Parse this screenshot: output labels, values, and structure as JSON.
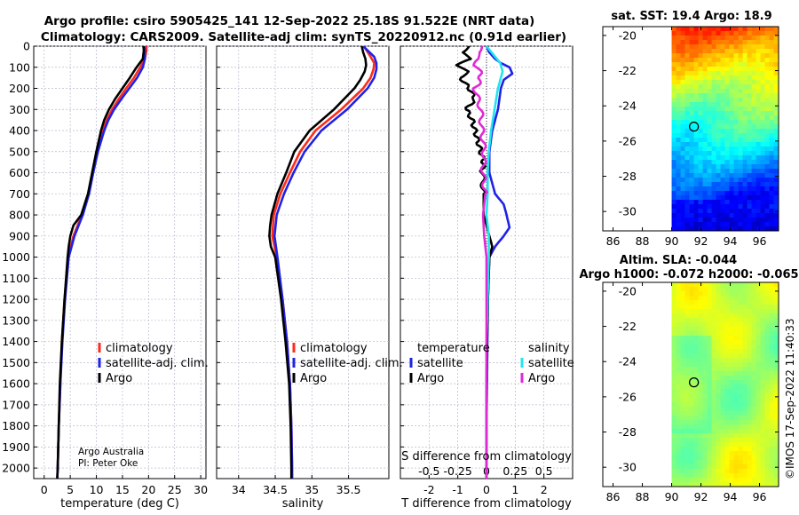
{
  "title_line1": "Argo profile: csiro 5905425_141 12-Sep-2022 25.18S 91.522E (NRT data)",
  "title_line2": "Climatology: CARS2009. Satellite-adj clim: synTS_20220912.nc (0.91d earlier)",
  "credit_line1": "Argo Australia",
  "credit_line2": "PI: Peter Oke",
  "timestamp": "©IMOS 17-Sep-2022 11:40:33",
  "colors": {
    "climatology": "#ff2a1a",
    "satellite_adj_clim": "#1f22e6",
    "argo": "#000000",
    "salinity_satellite": "#22e4ee",
    "salinity_argo": "#e02ad6"
  },
  "chart_data": [
    {
      "type": "line",
      "name": "temperature-profile",
      "xlabel": "temperature (deg C)",
      "ylabel": "depth",
      "xlim": [
        -2,
        31
      ],
      "ylim": [
        2050,
        0
      ],
      "x_ticks": [
        0,
        5,
        10,
        15,
        20,
        25,
        30
      ],
      "y_ticks": [
        0,
        100,
        200,
        300,
        400,
        500,
        600,
        700,
        800,
        900,
        1000,
        1100,
        1200,
        1300,
        1400,
        1500,
        1600,
        1700,
        1800,
        1900,
        2000
      ],
      "legend": [
        "climatology",
        "satellite-adj. clim.",
        "Argo"
      ],
      "legend_position": "lower-right",
      "series": [
        {
          "name": "climatology",
          "color_key": "climatology",
          "depth": [
            0,
            20,
            60,
            100,
            150,
            200,
            250,
            300,
            350,
            400,
            500,
            600,
            700,
            800,
            900,
            1000,
            1200,
            1400,
            1600,
            1800,
            2000,
            2050
          ],
          "values": [
            19.6,
            19.6,
            19.3,
            18.4,
            17.2,
            15.7,
            14.3,
            13.0,
            12.0,
            11.3,
            10.2,
            9.3,
            8.5,
            7.2,
            5.6,
            4.6,
            3.9,
            3.4,
            3.1,
            2.8,
            2.6,
            2.5
          ]
        },
        {
          "name": "satellite-adj. clim.",
          "color_key": "satellite_adj_clim",
          "depth": [
            0,
            20,
            60,
            100,
            150,
            200,
            250,
            300,
            350,
            400,
            500,
            600,
            700,
            800,
            900,
            1000,
            1200,
            1400,
            1600,
            1800,
            2000,
            2050
          ],
          "values": [
            19.2,
            19.3,
            19.3,
            18.9,
            17.8,
            16.3,
            14.8,
            13.4,
            12.3,
            11.5,
            10.3,
            9.4,
            8.6,
            7.4,
            5.8,
            4.7,
            4.0,
            3.5,
            3.1,
            2.8,
            2.6,
            2.5
          ]
        },
        {
          "name": "Argo",
          "color_key": "argo",
          "depth": [
            0,
            20,
            60,
            100,
            150,
            200,
            250,
            300,
            350,
            400,
            500,
            600,
            700,
            800,
            850,
            900,
            950,
            1000,
            1200,
            1400,
            1600,
            1800,
            2000,
            2050
          ],
          "values": [
            19.0,
            19.1,
            18.9,
            17.7,
            16.4,
            15.0,
            13.6,
            12.4,
            11.5,
            10.9,
            10.0,
            9.2,
            8.4,
            7.1,
            5.6,
            5.0,
            4.7,
            4.5,
            3.9,
            3.4,
            3.0,
            2.8,
            2.6,
            2.5
          ]
        }
      ]
    },
    {
      "type": "line",
      "name": "salinity-profile",
      "xlabel": "salinity",
      "xlim": [
        33.7,
        36.05
      ],
      "ylim": [
        2050,
        0
      ],
      "x_ticks": [
        34,
        34.5,
        35,
        35.5
      ],
      "legend": [
        "climatology",
        "satellite-adj. clim.",
        "Argo"
      ],
      "legend_position": "lower-right",
      "series": [
        {
          "name": "climatology",
          "color_key": "climatology",
          "depth": [
            0,
            50,
            80,
            110,
            150,
            200,
            300,
            400,
            500,
            600,
            700,
            800,
            900,
            1000,
            1200,
            1400,
            1600,
            1800,
            2000,
            2050
          ],
          "values": [
            35.71,
            35.8,
            35.85,
            35.84,
            35.8,
            35.7,
            35.4,
            35.05,
            34.84,
            34.7,
            34.57,
            34.48,
            34.46,
            34.52,
            34.6,
            34.66,
            34.7,
            34.72,
            34.73,
            34.73
          ]
        },
        {
          "name": "satellite-adj. clim.",
          "color_key": "satellite_adj_clim",
          "depth": [
            0,
            50,
            80,
            110,
            150,
            200,
            300,
            400,
            500,
            600,
            700,
            800,
            900,
            1000,
            1200,
            1400,
            1600,
            1800,
            2000,
            2050
          ],
          "values": [
            35.7,
            35.85,
            35.88,
            35.88,
            35.85,
            35.76,
            35.48,
            35.13,
            34.9,
            34.75,
            34.62,
            34.52,
            34.49,
            34.53,
            34.6,
            34.66,
            34.7,
            34.72,
            34.73,
            34.73
          ]
        },
        {
          "name": "Argo",
          "color_key": "argo",
          "depth": [
            0,
            30,
            60,
            90,
            120,
            160,
            200,
            300,
            400,
            500,
            600,
            700,
            800,
            850,
            900,
            950,
            1000,
            1200,
            1400,
            1600,
            1800,
            2000,
            2050
          ],
          "values": [
            35.68,
            35.7,
            35.73,
            35.74,
            35.72,
            35.66,
            35.58,
            35.3,
            34.97,
            34.76,
            34.65,
            34.53,
            34.45,
            34.43,
            34.42,
            34.44,
            34.5,
            34.58,
            34.64,
            34.69,
            34.71,
            34.72,
            34.72
          ]
        }
      ]
    },
    {
      "type": "line",
      "name": "difference-profile",
      "xlabel": "T difference from climatology",
      "x2label": "S difference from climatology",
      "xlim": [
        -3.0,
        3.0
      ],
      "x2lim": [
        -0.75,
        0.75
      ],
      "ylim": [
        2050,
        0
      ],
      "x_ticks": [
        -2,
        -1,
        0,
        1,
        2
      ],
      "x2_ticks": [
        -0.5,
        -0.25,
        0,
        0.25,
        0.5
      ],
      "x2_tick_labels": [
        "-0.5",
        "-0.25",
        "0",
        "0.25",
        "0.5"
      ],
      "legend_temperature_title": "temperature",
      "legend_salinity_title": "salinity",
      "legend_temperature_items": [
        "satellite",
        "Argo"
      ],
      "legend_salinity_items": [
        "satellite",
        "Argo"
      ],
      "series": [
        {
          "name": "temperature satellite",
          "axis": "T",
          "color_key": "satellite_adj_clim",
          "depth": [
            0,
            30,
            60,
            80,
            100,
            130,
            160,
            200,
            300,
            400,
            500,
            600,
            700,
            750,
            800,
            860,
            900,
            950,
            1000,
            1200,
            1400,
            1600,
            1800,
            2000,
            2050
          ],
          "values": [
            0.0,
            0.1,
            0.3,
            0.5,
            0.8,
            0.9,
            0.6,
            0.5,
            0.4,
            0.2,
            0.1,
            0.1,
            0.3,
            0.6,
            0.7,
            0.8,
            0.6,
            0.3,
            0.1,
            0.05,
            0.03,
            0.02,
            0.0,
            0.0,
            0.0
          ]
        },
        {
          "name": "temperature Argo",
          "axis": "T",
          "color_key": "argo",
          "depth": [
            0,
            30,
            60,
            90,
            120,
            150,
            200,
            250,
            300,
            350,
            400,
            450,
            500,
            550,
            600,
            700,
            800,
            900,
            950,
            1000,
            1200,
            1400,
            1600,
            1800,
            2000,
            2050
          ],
          "values": [
            -0.6,
            -0.9,
            -0.5,
            -1.0,
            -0.7,
            -0.9,
            -0.6,
            -0.4,
            -0.7,
            -0.5,
            -0.4,
            -0.3,
            -0.2,
            -0.1,
            -0.15,
            -0.1,
            -0.1,
            0.1,
            0.2,
            0.1,
            0.05,
            0.02,
            0.0,
            0.0,
            0.0,
            0.0
          ]
        },
        {
          "name": "salinity satellite",
          "axis": "S",
          "color_key": "salinity_satellite",
          "depth": [
            0,
            40,
            80,
            120,
            160,
            200,
            300,
            400,
            500,
            600,
            700,
            800,
            900,
            1000,
            1200,
            1400,
            1600,
            1800,
            2000,
            2050
          ],
          "values": [
            0.0,
            0.06,
            0.12,
            0.14,
            0.12,
            0.1,
            0.07,
            0.04,
            0.02,
            0.01,
            0.01,
            0.0,
            0.02,
            0.02,
            0.01,
            0.0,
            0.0,
            0.0,
            0.0,
            0.0
          ]
        },
        {
          "name": "salinity Argo",
          "axis": "S",
          "color_key": "salinity_argo",
          "depth": [
            0,
            30,
            60,
            90,
            120,
            160,
            200,
            300,
            400,
            500,
            600,
            700,
            800,
            900,
            1000,
            1200,
            1400,
            1600,
            1800,
            2000,
            2050
          ],
          "values": [
            -0.04,
            -0.08,
            -0.06,
            -0.1,
            -0.06,
            -0.05,
            -0.1,
            -0.05,
            -0.04,
            -0.02,
            -0.03,
            -0.01,
            -0.03,
            -0.02,
            0.0,
            0.0,
            0.0,
            0.0,
            0.0,
            0.0,
            0.0
          ]
        }
      ]
    },
    {
      "type": "heatmap",
      "name": "sst-map",
      "title": "sat. SST: 19.4 Argo: 18.9",
      "xlim": [
        85.3,
        97.3
      ],
      "ylim": [
        -31.1,
        -19.5
      ],
      "x_ticks": [
        86,
        88,
        90,
        92,
        94,
        96
      ],
      "y_ticks": [
        -20,
        -22,
        -24,
        -26,
        -28,
        -30
      ],
      "data_xlim": [
        90,
        97.3
      ],
      "colormap": "jet",
      "float_marker": {
        "lon": 91.52,
        "lat": -25.18
      }
    },
    {
      "type": "heatmap",
      "name": "sla-map",
      "title_line1": "Altim. SLA: -0.044",
      "title_line2": "Argo h1000: -0.072 h2000: -0.065",
      "xlim": [
        85.3,
        97.3
      ],
      "ylim": [
        -31.1,
        -19.5
      ],
      "x_ticks": [
        86,
        88,
        90,
        92,
        94,
        96
      ],
      "y_ticks": [
        -20,
        -22,
        -24,
        -26,
        -28,
        -30
      ],
      "data_xlim": [
        90,
        97.3
      ],
      "colormap": "jet",
      "float_marker": {
        "lon": 91.52,
        "lat": -25.18
      }
    }
  ]
}
